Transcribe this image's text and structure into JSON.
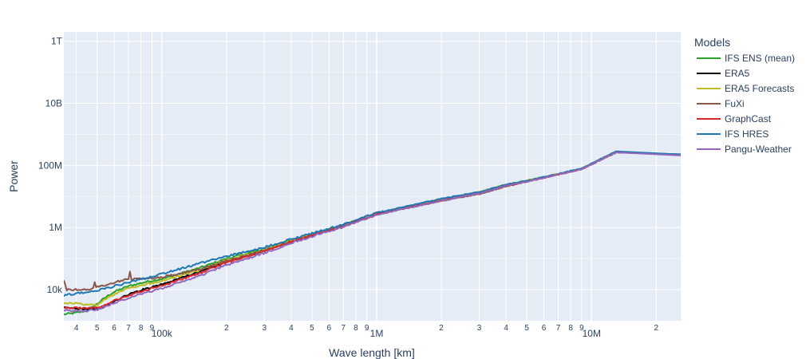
{
  "chart_data": {
    "type": "line",
    "xlabel": "Wave length [km]",
    "ylabel": "Power",
    "x_scale": "log",
    "y_scale": "log",
    "xlim": [
      35000,
      26000000
    ],
    "ylim": [
      1000,
      2000000000000
    ],
    "x_tick_labels": {
      "major": [
        "100k",
        "1M",
        "10M"
      ],
      "minor": [
        "4",
        "5",
        "6",
        "7",
        "8",
        "9",
        "2",
        "3",
        "4",
        "5",
        "6",
        "7",
        "8",
        "9",
        "2",
        "3",
        "4",
        "5",
        "6",
        "7",
        "8",
        "9",
        "2"
      ]
    },
    "y_tick_labels": [
      "10k",
      "1M",
      "100M",
      "10B",
      "1T"
    ],
    "legend": {
      "title": "Models",
      "placement": "right"
    },
    "grid": true,
    "series": [
      {
        "name": "IFS ENS (mean)",
        "color": "#2ca02c",
        "x": [
          35000,
          40000,
          45000,
          50000,
          55000,
          60000,
          70000,
          85000,
          100000,
          150000,
          200000,
          300000,
          400000,
          500000,
          700000,
          1000000,
          2000000,
          3000000,
          4000000,
          6000000,
          9000000,
          13000000,
          26000000
        ],
        "y": [
          1600,
          1800,
          2100,
          3500,
          5800,
          8500,
          13000,
          18000,
          22000,
          50000,
          100000,
          200000,
          400000,
          600000,
          1200000,
          2800000,
          8000000,
          14000000,
          24000000,
          42000000,
          80000000,
          280000000,
          220000000
        ]
      },
      {
        "name": "ERA5",
        "color": "#000000",
        "x": [
          35000,
          40000,
          45000,
          50000,
          55000,
          60000,
          70000,
          85000,
          100000,
          150000,
          200000,
          300000,
          400000,
          500000,
          700000,
          1000000,
          2000000,
          3000000,
          4000000,
          6000000,
          9000000,
          13000000,
          26000000
        ],
        "y": [
          2600,
          2500,
          2400,
          2300,
          3000,
          4200,
          7000,
          11000,
          15000,
          38000,
          80000,
          180000,
          360000,
          580000,
          1150000,
          2700000,
          7800000,
          13000000,
          23000000,
          41000000,
          78000000,
          270000000,
          215000000
        ]
      },
      {
        "name": "ERA5 Forecasts",
        "color": "#bcbd22",
        "x": [
          35000,
          40000,
          45000,
          50000,
          55000,
          60000,
          70000,
          85000,
          100000,
          150000,
          200000,
          300000,
          400000,
          500000,
          700000,
          1000000,
          2000000,
          3000000,
          4000000,
          6000000,
          9000000,
          13000000,
          26000000
        ],
        "y": [
          3800,
          3600,
          3300,
          3200,
          5000,
          7200,
          11500,
          15000,
          19000,
          42000,
          90000,
          190000,
          380000,
          600000,
          1200000,
          2900000,
          8200000,
          14000000,
          24000000,
          42000000,
          80000000,
          280000000,
          220000000
        ]
      },
      {
        "name": "FuXi",
        "color": "#8c564b",
        "x": [
          35000,
          36000,
          40000,
          45000,
          48000,
          48500,
          49000,
          55000,
          60000,
          70000,
          71000,
          72000,
          85000,
          100000,
          150000,
          200000,
          300000,
          400000,
          500000,
          700000,
          1000000,
          2000000,
          3000000,
          4000000,
          6000000,
          9000000,
          13000000,
          26000000
        ],
        "y": [
          20000,
          10000,
          10000,
          10000,
          11000,
          24000,
          12000,
          14000,
          17000,
          22000,
          40000,
          22000,
          23000,
          25000,
          45000,
          85000,
          180000,
          350000,
          550000,
          1100000,
          2600000,
          7200000,
          12000000,
          21000000,
          40000000,
          76000000,
          260000000,
          230000000
        ]
      },
      {
        "name": "GraphCast",
        "color": "#d62728",
        "x": [
          35000,
          40000,
          45000,
          50000,
          55000,
          60000,
          70000,
          85000,
          100000,
          150000,
          200000,
          300000,
          400000,
          500000,
          700000,
          1000000,
          2000000,
          3000000,
          4000000,
          6000000,
          9000000,
          13000000,
          26000000
        ],
        "y": [
          2600,
          2600,
          2500,
          2600,
          3400,
          4500,
          6500,
          10000,
          13000,
          34000,
          75000,
          170000,
          350000,
          560000,
          1100000,
          2700000,
          7500000,
          13000000,
          22000000,
          40000000,
          77000000,
          270000000,
          215000000
        ]
      },
      {
        "name": "IFS HRES",
        "color": "#1f77b4",
        "x": [
          35000,
          40000,
          45000,
          50000,
          55000,
          60000,
          70000,
          85000,
          100000,
          150000,
          200000,
          300000,
          400000,
          500000,
          700000,
          1000000,
          2000000,
          3000000,
          4000000,
          6000000,
          9000000,
          13000000,
          26000000
        ],
        "y": [
          6500,
          7500,
          8500,
          9500,
          11000,
          13000,
          17000,
          24000,
          32000,
          70000,
          120000,
          230000,
          420000,
          650000,
          1250000,
          3000000,
          8500000,
          14000000,
          24000000,
          42000000,
          80000000,
          285000000,
          225000000
        ]
      },
      {
        "name": "Pangu-Weather",
        "color": "#9467bd",
        "x": [
          35000,
          40000,
          45000,
          50000,
          55000,
          60000,
          70000,
          85000,
          100000,
          150000,
          200000,
          300000,
          400000,
          500000,
          700000,
          1000000,
          2000000,
          3000000,
          4000000,
          6000000,
          9000000,
          13000000,
          26000000
        ],
        "y": [
          2200,
          2000,
          2100,
          2300,
          2800,
          3700,
          5500,
          8000,
          11000,
          28000,
          62000,
          150000,
          320000,
          520000,
          1050000,
          2600000,
          7300000,
          12500000,
          22000000,
          40000000,
          76000000,
          265000000,
          210000000
        ]
      }
    ]
  }
}
